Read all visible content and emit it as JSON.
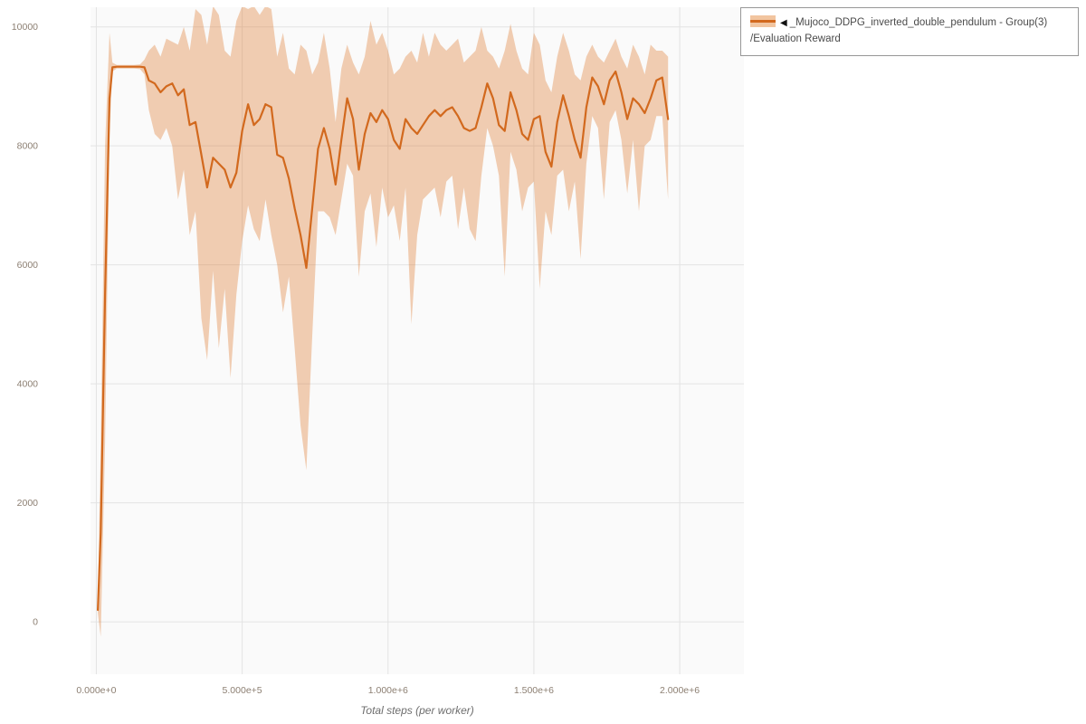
{
  "legend": {
    "arrow_icon": "◀",
    "label_line1": "_Mujoco_DDPG_inverted_double_pendulum - Group(3)",
    "label_line2": "/Evaluation Reward",
    "line_color": "#d2691e",
    "band_color": "#f2c5a0"
  },
  "chart_data": {
    "type": "line",
    "title": "",
    "xlabel": "Total steps (per worker)",
    "ylabel": "",
    "legend_position": "top-right-outside",
    "grid": true,
    "xlim": [
      -20000,
      2220000
    ],
    "ylim": [
      -880,
      10330
    ],
    "x_ticks": [
      {
        "value": 0,
        "label": "0.000e+0"
      },
      {
        "value": 500000,
        "label": "5.000e+5"
      },
      {
        "value": 1000000,
        "label": "1.000e+6"
      },
      {
        "value": 1500000,
        "label": "1.500e+6"
      },
      {
        "value": 2000000,
        "label": "2.000e+6"
      }
    ],
    "y_ticks": [
      {
        "value": 0,
        "label": "0"
      },
      {
        "value": 2000,
        "label": "2000"
      },
      {
        "value": 4000,
        "label": "4000"
      },
      {
        "value": 6000,
        "label": "6000"
      },
      {
        "value": 8000,
        "label": "8000"
      },
      {
        "value": 10000,
        "label": "10000"
      }
    ],
    "colors": {
      "line": "#d2691e",
      "band": "#e0823a",
      "band_opacity": 0.38,
      "grid": "#e3e3e3",
      "plot_bg": "#fafafa",
      "tick_label": "#8c7f72",
      "axis_label": "#6e6e6e"
    },
    "series": [
      {
        "name": "_Mujoco_DDPG_inverted_double_pendulum - Group(3)/Evaluation Reward",
        "x": [
          5000,
          15000,
          30000,
          45000,
          55000,
          70000,
          90000,
          110000,
          130000,
          150000,
          165000,
          180000,
          200000,
          220000,
          240000,
          260000,
          280000,
          300000,
          320000,
          340000,
          360000,
          380000,
          400000,
          420000,
          440000,
          460000,
          480000,
          500000,
          520000,
          540000,
          560000,
          580000,
          600000,
          620000,
          640000,
          660000,
          680000,
          700000,
          720000,
          740000,
          760000,
          780000,
          800000,
          820000,
          840000,
          860000,
          880000,
          900000,
          920000,
          940000,
          960000,
          980000,
          1000000,
          1020000,
          1040000,
          1060000,
          1080000,
          1100000,
          1120000,
          1140000,
          1160000,
          1180000,
          1200000,
          1220000,
          1240000,
          1260000,
          1280000,
          1300000,
          1320000,
          1340000,
          1360000,
          1380000,
          1400000,
          1420000,
          1440000,
          1460000,
          1480000,
          1500000,
          1520000,
          1540000,
          1560000,
          1580000,
          1600000,
          1620000,
          1640000,
          1660000,
          1680000,
          1700000,
          1720000,
          1740000,
          1760000,
          1780000,
          1800000,
          1820000,
          1840000,
          1860000,
          1880000,
          1900000,
          1920000,
          1940000,
          1960000
        ],
        "mean": [
          200,
          1500,
          5500,
          8800,
          9320,
          9330,
          9330,
          9330,
          9330,
          9330,
          9320,
          9100,
          9050,
          8900,
          9000,
          9050,
          8850,
          8950,
          8350,
          8400,
          7850,
          7300,
          7800,
          7700,
          7600,
          7300,
          7550,
          8250,
          8700,
          8350,
          8450,
          8700,
          8650,
          7850,
          7800,
          7450,
          6950,
          6500,
          5950,
          6950,
          7950,
          8300,
          7950,
          7350,
          8100,
          8800,
          8450,
          7600,
          8200,
          8550,
          8400,
          8600,
          8450,
          8100,
          7950,
          8450,
          8300,
          8200,
          8350,
          8500,
          8600,
          8500,
          8600,
          8650,
          8500,
          8300,
          8250,
          8300,
          8650,
          9050,
          8800,
          8350,
          8250,
          8900,
          8600,
          8200,
          8100,
          8450,
          8500,
          7900,
          7650,
          8400,
          8850,
          8500,
          8100,
          7800,
          8650,
          9150,
          9000,
          8700,
          9100,
          9250,
          8900,
          8450,
          8800,
          8700,
          8550,
          8800,
          9100,
          9150,
          8450
        ],
        "lower": [
          150,
          -250,
          3000,
          8200,
          9250,
          9300,
          9300,
          9300,
          9300,
          9290,
          9200,
          8600,
          8200,
          8100,
          8300,
          8000,
          7100,
          7600,
          6500,
          6900,
          5100,
          4400,
          5900,
          4600,
          5600,
          4100,
          5500,
          6400,
          7000,
          6600,
          6400,
          7100,
          6500,
          6000,
          5200,
          5800,
          4600,
          3300,
          2550,
          4800,
          6900,
          6900,
          6800,
          6500,
          7100,
          7700,
          7500,
          5800,
          6900,
          7200,
          6300,
          7300,
          6800,
          7000,
          6400,
          7300,
          5000,
          6500,
          7100,
          7200,
          7300,
          6800,
          7400,
          7500,
          6600,
          7300,
          6600,
          6400,
          7500,
          8300,
          8000,
          7500,
          5800,
          7900,
          7600,
          6900,
          7300,
          7400,
          5600,
          6900,
          6500,
          7500,
          7600,
          6900,
          7400,
          6100,
          7700,
          8500,
          8300,
          7100,
          8400,
          8600,
          8100,
          7200,
          8100,
          6900,
          8000,
          8100,
          8500,
          8500,
          7100
        ],
        "upper": [
          250,
          3000,
          8000,
          9900,
          9400,
          9360,
          9360,
          9360,
          9360,
          9370,
          9450,
          9600,
          9700,
          9500,
          9800,
          9750,
          9700,
          10000,
          9600,
          10300,
          10200,
          9700,
          10350,
          10200,
          9600,
          9500,
          10100,
          10350,
          10300,
          10350,
          10200,
          10350,
          10300,
          9500,
          9900,
          9300,
          9200,
          9700,
          9600,
          9200,
          9400,
          9900,
          9300,
          8400,
          9300,
          9700,
          9400,
          9200,
          9500,
          10100,
          9700,
          9900,
          9600,
          9200,
          9300,
          9500,
          9600,
          9400,
          9900,
          9500,
          9900,
          9700,
          9600,
          9700,
          9800,
          9400,
          9500,
          9600,
          10000,
          9600,
          9500,
          9300,
          9600,
          10050,
          9600,
          9300,
          9200,
          9900,
          9700,
          9100,
          8900,
          9500,
          9900,
          9600,
          9200,
          9100,
          9500,
          9700,
          9500,
          9400,
          9600,
          9800,
          9500,
          9300,
          9700,
          9500,
          9200,
          9700,
          9600,
          9600,
          9500
        ]
      }
    ]
  }
}
